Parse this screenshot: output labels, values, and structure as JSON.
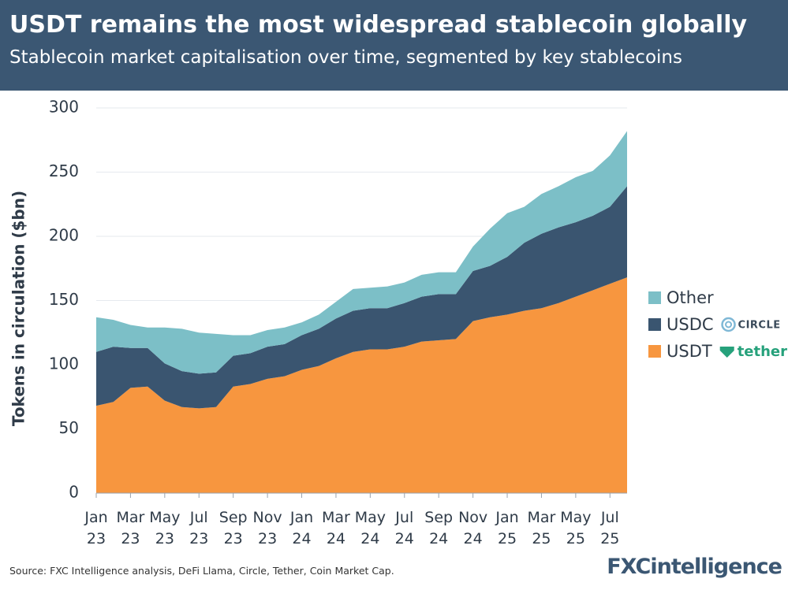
{
  "chart_data": {
    "type": "stacked-area",
    "title": "USDT remains the most widespread stablecoin globally",
    "subtitle": "Stablecoin market capitalisation over time, segmented by key stablecoins",
    "y_label": "Tokens in circulation ($bn)",
    "source": "Source: FXC Intelligence analysis, DeFi Llama, Circle, Tether, Coin Market Cap.",
    "brand": "FXCintelligence",
    "categories": [
      "Jan 23",
      null,
      "Mar 23",
      null,
      "May 23",
      null,
      "Jul 23",
      null,
      "Sep 23",
      null,
      "Nov 23",
      null,
      "Jan 24",
      null,
      "Mar 24",
      null,
      "May 24",
      null,
      "Jul 24",
      null,
      "Sep 24",
      null,
      "Nov 24",
      null,
      "Jan 25",
      null,
      "Mar 25",
      null,
      "May 25",
      null,
      "Jul 25",
      null
    ],
    "series": [
      {
        "name": "USDT",
        "logo_text": "tether",
        "color": "#f7963f",
        "values": [
          68,
          71,
          82,
          83,
          72,
          67,
          66,
          67,
          83,
          85,
          89,
          91,
          96,
          99,
          105,
          110,
          112,
          112,
          114,
          118,
          119,
          120,
          134,
          137,
          139,
          142,
          144,
          148,
          153,
          158,
          163,
          168
        ]
      },
      {
        "name": "USDC",
        "logo_text": "CIRCLE",
        "color": "#3a5570",
        "values": [
          42,
          43,
          31,
          30,
          29,
          28,
          27,
          27,
          24,
          24,
          25,
          25,
          27,
          29,
          31,
          32,
          32,
          32,
          34,
          35,
          36,
          35,
          39,
          40,
          45,
          53,
          58,
          59,
          58,
          58,
          60,
          71
        ]
      },
      {
        "name": "Other",
        "color": "#7cbfc7",
        "values": [
          27,
          21,
          18,
          16,
          28,
          33,
          32,
          30,
          16,
          14,
          13,
          13,
          10,
          11,
          13,
          17,
          16,
          17,
          16,
          17,
          17,
          17,
          19,
          29,
          34,
          28,
          31,
          32,
          35,
          35,
          40,
          43
        ]
      }
    ],
    "ylim": [
      0,
      300
    ],
    "yticks": [
      0,
      50,
      100,
      150,
      200,
      250,
      300
    ],
    "grid": true
  }
}
